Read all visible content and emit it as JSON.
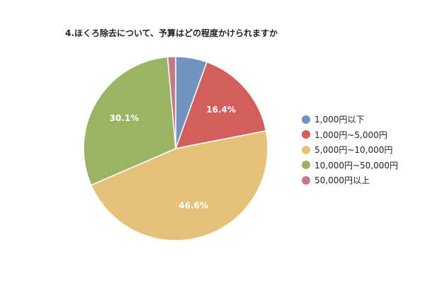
{
  "chart_data": {
    "type": "pie",
    "title": "4.ほくろ除去について、予算はどの程度かけられますか",
    "slices": [
      {
        "label": "1,000円以下",
        "value": 5.5,
        "color": "#7293bf",
        "show_label": false
      },
      {
        "label": "1,000円~5,000円",
        "value": 16.4,
        "color": "#d35f5d",
        "show_label": true,
        "data_label": "16.4%"
      },
      {
        "label": "5,000円~10,000円",
        "value": 46.6,
        "color": "#e6c17a",
        "show_label": true,
        "data_label": "46.6%"
      },
      {
        "label": "10,000円~50,000円",
        "value": 30.1,
        "color": "#9bb365",
        "show_label": true,
        "data_label": "30.1%"
      },
      {
        "label": "50,000円以上",
        "value": 1.4,
        "color": "#c77a86",
        "show_label": false
      }
    ],
    "legend_position": "right",
    "start_angle": "top",
    "direction": "clockwise"
  }
}
